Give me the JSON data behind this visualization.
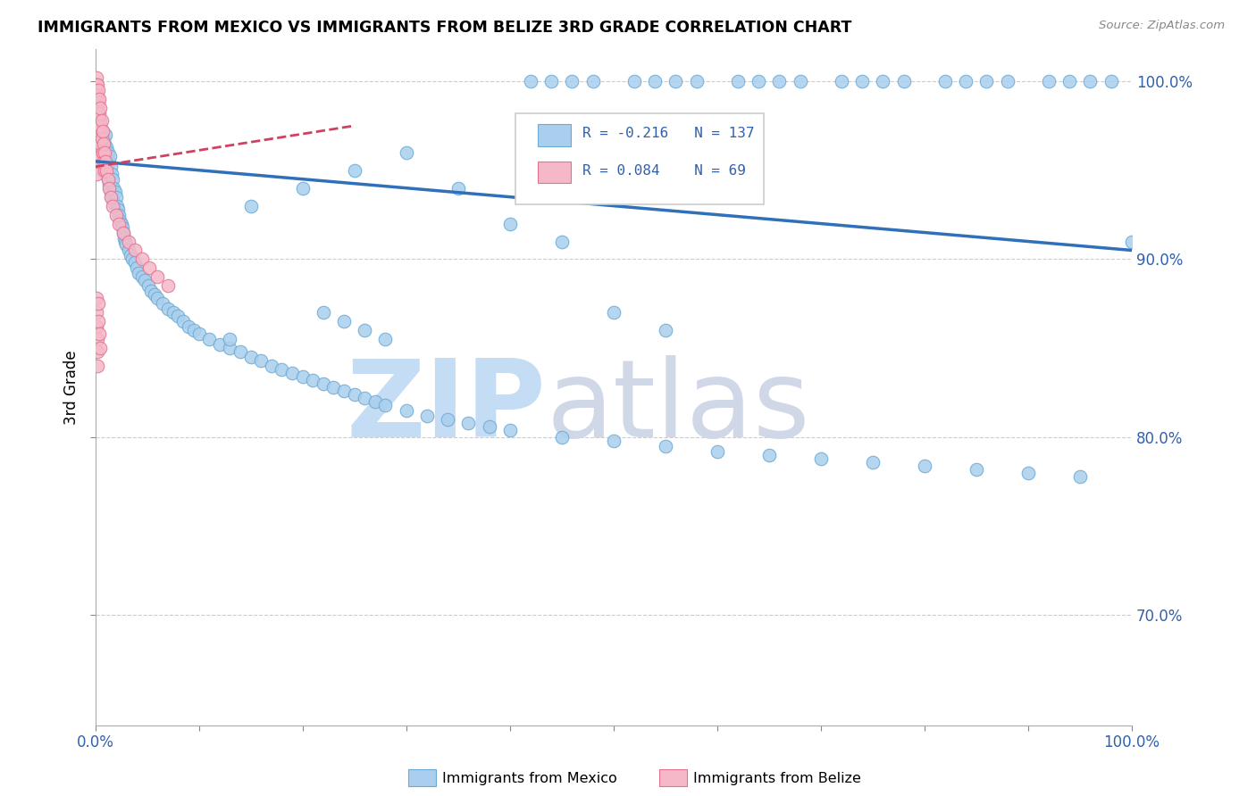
{
  "title": "IMMIGRANTS FROM MEXICO VS IMMIGRANTS FROM BELIZE 3RD GRADE CORRELATION CHART",
  "source": "Source: ZipAtlas.com",
  "ylabel": "3rd Grade",
  "y_tick_labels": [
    "100.0%",
    "90.0%",
    "80.0%",
    "70.0%"
  ],
  "y_tick_positions": [
    1.0,
    0.9,
    0.8,
    0.7
  ],
  "xlim": [
    0.0,
    1.0
  ],
  "ylim": [
    0.638,
    1.018
  ],
  "legend_blue_label": "Immigrants from Mexico",
  "legend_pink_label": "Immigrants from Belize",
  "R_blue": -0.216,
  "N_blue": 137,
  "R_pink": 0.084,
  "N_pink": 69,
  "blue_color": "#aacfee",
  "blue_edge_color": "#6aaad4",
  "blue_line_color": "#3070b8",
  "pink_color": "#f5b8c8",
  "pink_edge_color": "#e87090",
  "pink_line_color": "#d04060",
  "watermark_zip_color": "#c5dcf5",
  "watermark_atlas_color": "#d0d8e8",
  "blue_x": [
    0.002,
    0.003,
    0.003,
    0.004,
    0.004,
    0.005,
    0.005,
    0.005,
    0.006,
    0.006,
    0.007,
    0.007,
    0.007,
    0.008,
    0.008,
    0.009,
    0.009,
    0.01,
    0.01,
    0.011,
    0.011,
    0.012,
    0.012,
    0.013,
    0.013,
    0.014,
    0.014,
    0.015,
    0.015,
    0.016,
    0.016,
    0.017,
    0.018,
    0.018,
    0.019,
    0.02,
    0.021,
    0.022,
    0.023,
    0.024,
    0.025,
    0.026,
    0.027,
    0.028,
    0.029,
    0.03,
    0.032,
    0.034,
    0.036,
    0.038,
    0.04,
    0.042,
    0.045,
    0.048,
    0.051,
    0.054,
    0.057,
    0.06,
    0.065,
    0.07,
    0.075,
    0.08,
    0.085,
    0.09,
    0.095,
    0.1,
    0.11,
    0.12,
    0.13,
    0.14,
    0.15,
    0.16,
    0.17,
    0.18,
    0.19,
    0.2,
    0.21,
    0.22,
    0.23,
    0.24,
    0.25,
    0.26,
    0.27,
    0.28,
    0.3,
    0.32,
    0.34,
    0.36,
    0.38,
    0.4,
    0.45,
    0.5,
    0.55,
    0.6,
    0.65,
    0.7,
    0.75,
    0.8,
    0.85,
    0.9,
    0.95,
    1.0,
    0.42,
    0.44,
    0.46,
    0.48,
    0.52,
    0.54,
    0.56,
    0.58,
    0.62,
    0.64,
    0.66,
    0.68,
    0.72,
    0.74,
    0.76,
    0.78,
    0.82,
    0.84,
    0.86,
    0.88,
    0.92,
    0.94,
    0.96,
    0.98,
    0.35,
    0.4,
    0.45,
    0.5,
    0.55,
    0.3,
    0.25,
    0.2,
    0.15,
    0.13,
    0.22,
    0.24,
    0.26,
    0.28
  ],
  "blue_y": [
    0.975,
    0.968,
    0.982,
    0.972,
    0.96,
    0.978,
    0.965,
    0.955,
    0.97,
    0.958,
    0.972,
    0.962,
    0.95,
    0.968,
    0.955,
    0.965,
    0.952,
    0.97,
    0.958,
    0.963,
    0.948,
    0.96,
    0.945,
    0.955,
    0.942,
    0.958,
    0.94,
    0.952,
    0.938,
    0.948,
    0.935,
    0.945,
    0.94,
    0.932,
    0.938,
    0.935,
    0.93,
    0.928,
    0.925,
    0.922,
    0.92,
    0.918,
    0.915,
    0.912,
    0.91,
    0.908,
    0.905,
    0.902,
    0.9,
    0.898,
    0.895,
    0.892,
    0.89,
    0.888,
    0.885,
    0.882,
    0.88,
    0.878,
    0.875,
    0.872,
    0.87,
    0.868,
    0.865,
    0.862,
    0.86,
    0.858,
    0.855,
    0.852,
    0.85,
    0.848,
    0.845,
    0.843,
    0.84,
    0.838,
    0.836,
    0.834,
    0.832,
    0.83,
    0.828,
    0.826,
    0.824,
    0.822,
    0.82,
    0.818,
    0.815,
    0.812,
    0.81,
    0.808,
    0.806,
    0.804,
    0.8,
    0.798,
    0.795,
    0.792,
    0.79,
    0.788,
    0.786,
    0.784,
    0.782,
    0.78,
    0.778,
    0.91,
    1.0,
    1.0,
    1.0,
    1.0,
    1.0,
    1.0,
    1.0,
    1.0,
    1.0,
    1.0,
    1.0,
    1.0,
    1.0,
    1.0,
    1.0,
    1.0,
    1.0,
    1.0,
    1.0,
    1.0,
    1.0,
    1.0,
    1.0,
    1.0,
    0.94,
    0.92,
    0.91,
    0.87,
    0.86,
    0.96,
    0.95,
    0.94,
    0.93,
    0.855,
    0.87,
    0.865,
    0.86,
    0.855
  ],
  "pink_x": [
    0.001,
    0.001,
    0.001,
    0.001,
    0.001,
    0.001,
    0.001,
    0.001,
    0.001,
    0.001,
    0.001,
    0.001,
    0.001,
    0.001,
    0.001,
    0.002,
    0.002,
    0.002,
    0.002,
    0.002,
    0.002,
    0.002,
    0.002,
    0.003,
    0.003,
    0.003,
    0.003,
    0.003,
    0.004,
    0.004,
    0.004,
    0.004,
    0.004,
    0.005,
    0.005,
    0.005,
    0.006,
    0.006,
    0.007,
    0.007,
    0.008,
    0.008,
    0.009,
    0.009,
    0.01,
    0.011,
    0.012,
    0.013,
    0.015,
    0.017,
    0.02,
    0.023,
    0.027,
    0.032,
    0.038,
    0.045,
    0.052,
    0.06,
    0.07,
    0.001,
    0.001,
    0.001,
    0.002,
    0.002,
    0.002,
    0.003,
    0.003,
    0.004,
    0.005
  ],
  "pink_y": [
    1.002,
    0.998,
    0.995,
    0.992,
    0.988,
    0.984,
    0.98,
    0.976,
    0.972,
    0.968,
    0.964,
    0.96,
    0.956,
    0.952,
    0.948,
    0.998,
    0.992,
    0.986,
    0.98,
    0.974,
    0.968,
    0.962,
    0.956,
    0.995,
    0.988,
    0.98,
    0.972,
    0.964,
    0.99,
    0.982,
    0.974,
    0.966,
    0.958,
    0.985,
    0.975,
    0.965,
    0.978,
    0.968,
    0.972,
    0.96,
    0.965,
    0.955,
    0.96,
    0.95,
    0.955,
    0.95,
    0.945,
    0.94,
    0.935,
    0.93,
    0.925,
    0.92,
    0.915,
    0.91,
    0.905,
    0.9,
    0.895,
    0.89,
    0.885,
    0.878,
    0.87,
    0.862,
    0.855,
    0.848,
    0.84,
    0.875,
    0.865,
    0.858,
    0.85
  ],
  "blue_trend_x": [
    0.0,
    1.0
  ],
  "blue_trend_y": [
    0.955,
    0.905
  ],
  "pink_trend_x": [
    0.0,
    0.25
  ],
  "pink_trend_y": [
    0.952,
    0.975
  ]
}
